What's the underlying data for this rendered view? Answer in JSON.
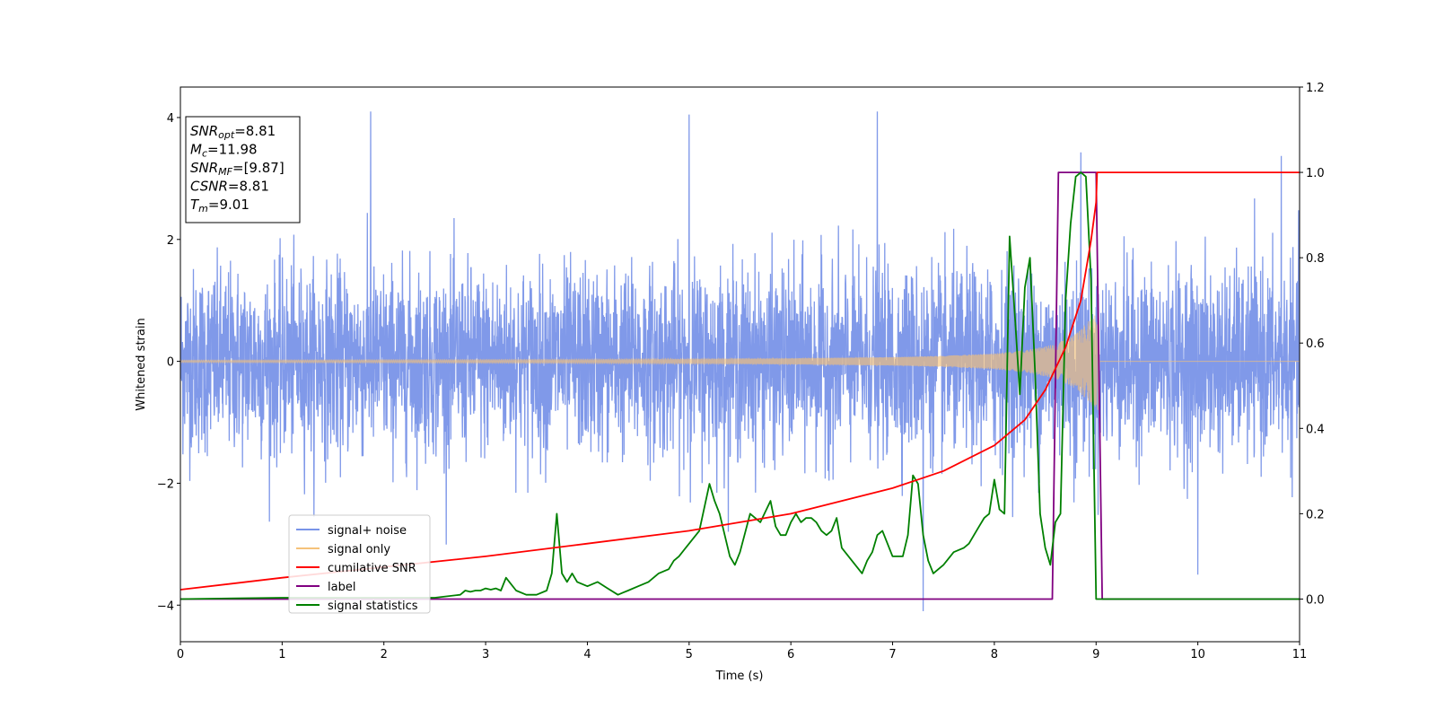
{
  "chart_data": {
    "type": "line",
    "xlabel": "Time (s)",
    "ylabel": "Whitened strain",
    "xlim": [
      0,
      11
    ],
    "ylim": [
      -4.6,
      4.5
    ],
    "y2lim": [
      -0.1,
      1.2
    ],
    "xticks": [
      "0",
      "1",
      "2",
      "3",
      "4",
      "5",
      "6",
      "7",
      "8",
      "9",
      "10",
      "11"
    ],
    "yticks": [
      "−4",
      "−2",
      "0",
      "2",
      "4"
    ],
    "y2ticks": [
      "0.0",
      "0.2",
      "0.4",
      "0.6",
      "0.8",
      "1.0",
      "1.2"
    ],
    "grid": false,
    "legend_position": "lower-left",
    "annotation": [
      {
        "name": "SNR",
        "sub": "opt",
        "value": "=8.81"
      },
      {
        "name": "M",
        "sub": "c",
        "value": "=11.98"
      },
      {
        "name": "SNR",
        "sub": "MF",
        "value": "=[9.87]"
      },
      {
        "name": "CSNR",
        "sub": "",
        "value": "=8.81"
      },
      {
        "name": "T",
        "sub": "m",
        "value": "=9.01"
      }
    ],
    "series": [
      {
        "name": "signal+ noise",
        "axis": "left",
        "color": "#7994e8",
        "noise_sigma": 0.75,
        "time_range": [
          0,
          11
        ],
        "notable_spikes": [
          [
            1.87,
            4.12
          ],
          [
            6.85,
            4.1
          ],
          [
            5.0,
            4.05
          ],
          [
            7.3,
            -4.15
          ],
          [
            8.85,
            3.43
          ],
          [
            10.82,
            3.37
          ],
          [
            10.0,
            -3.5
          ]
        ]
      },
      {
        "name": "signal only",
        "axis": "left",
        "color": "#f5c27a",
        "envelope": {
          "t": [
            0,
            2,
            4,
            5,
            6,
            7,
            7.5,
            8,
            8.3,
            8.6,
            8.8,
            8.95,
            9.02,
            9.03,
            11
          ],
          "amp": [
            0.02,
            0.025,
            0.03,
            0.04,
            0.05,
            0.07,
            0.09,
            0.13,
            0.18,
            0.28,
            0.45,
            0.7,
            0.8,
            0,
            0
          ]
        }
      },
      {
        "name": "cumilative SNR",
        "axis": "right",
        "color": "#ff0000",
        "x": [
          0,
          1,
          2,
          3,
          4,
          5,
          6,
          7,
          7.5,
          8,
          8.3,
          8.5,
          8.7,
          8.85,
          8.95,
          9.0,
          9.01,
          11
        ],
        "y": [
          0.022,
          0.05,
          0.075,
          0.1,
          0.13,
          0.16,
          0.2,
          0.26,
          0.3,
          0.36,
          0.42,
          0.49,
          0.59,
          0.7,
          0.84,
          0.93,
          1.0,
          1.0
        ]
      },
      {
        "name": "label",
        "axis": "right",
        "color": "#800080",
        "x": [
          0,
          8.57,
          8.63,
          9.0,
          9.06,
          11
        ],
        "y": [
          0.0,
          0.0,
          1.0,
          1.0,
          0.0,
          0.0
        ]
      },
      {
        "name": "signal statistics",
        "axis": "right",
        "color": "#008000",
        "x": [
          0,
          1,
          2,
          2.5,
          2.75,
          2.8,
          2.85,
          2.9,
          2.95,
          3.0,
          3.05,
          3.1,
          3.15,
          3.2,
          3.25,
          3.3,
          3.4,
          3.5,
          3.6,
          3.65,
          3.7,
          3.75,
          3.8,
          3.85,
          3.9,
          3.95,
          4.0,
          4.05,
          4.1,
          4.2,
          4.3,
          4.35,
          4.4,
          4.5,
          4.6,
          4.7,
          4.8,
          4.85,
          4.9,
          5.0,
          5.1,
          5.2,
          5.25,
          5.3,
          5.4,
          5.45,
          5.5,
          5.6,
          5.7,
          5.8,
          5.85,
          5.9,
          5.95,
          6.0,
          6.05,
          6.1,
          6.15,
          6.2,
          6.25,
          6.3,
          6.35,
          6.4,
          6.45,
          6.5,
          6.6,
          6.7,
          6.75,
          6.8,
          6.85,
          6.9,
          7.0,
          7.1,
          7.15,
          7.2,
          7.25,
          7.3,
          7.35,
          7.4,
          7.5,
          7.6,
          7.7,
          7.75,
          7.8,
          7.85,
          7.9,
          7.95,
          8.0,
          8.05,
          8.1,
          8.15,
          8.2,
          8.25,
          8.3,
          8.35,
          8.4,
          8.45,
          8.5,
          8.55,
          8.6,
          8.65,
          8.7,
          8.75,
          8.8,
          8.85,
          8.9,
          8.95,
          9.0,
          9.05,
          9.1,
          9.2,
          9.3,
          9.5,
          10,
          11
        ],
        "y": [
          0.0,
          0.003,
          0.003,
          0.003,
          0.01,
          0.02,
          0.017,
          0.02,
          0.02,
          0.025,
          0.022,
          0.025,
          0.02,
          0.05,
          0.035,
          0.02,
          0.01,
          0.01,
          0.02,
          0.06,
          0.2,
          0.06,
          0.04,
          0.06,
          0.04,
          0.035,
          0.03,
          0.035,
          0.04,
          0.025,
          0.01,
          0.015,
          0.02,
          0.03,
          0.04,
          0.06,
          0.07,
          0.09,
          0.1,
          0.13,
          0.16,
          0.27,
          0.23,
          0.2,
          0.1,
          0.08,
          0.11,
          0.2,
          0.18,
          0.23,
          0.17,
          0.15,
          0.15,
          0.18,
          0.2,
          0.18,
          0.19,
          0.19,
          0.18,
          0.16,
          0.15,
          0.16,
          0.19,
          0.12,
          0.09,
          0.06,
          0.09,
          0.11,
          0.15,
          0.16,
          0.1,
          0.1,
          0.15,
          0.29,
          0.27,
          0.15,
          0.09,
          0.06,
          0.08,
          0.11,
          0.12,
          0.13,
          0.15,
          0.17,
          0.19,
          0.2,
          0.28,
          0.21,
          0.2,
          0.85,
          0.67,
          0.48,
          0.73,
          0.8,
          0.53,
          0.2,
          0.12,
          0.08,
          0.18,
          0.2,
          0.7,
          0.88,
          0.99,
          1.0,
          0.99,
          0.75,
          0.0,
          0.0,
          0.0,
          0.0,
          0.0,
          0.0,
          0.0,
          0.0
        ]
      }
    ]
  }
}
